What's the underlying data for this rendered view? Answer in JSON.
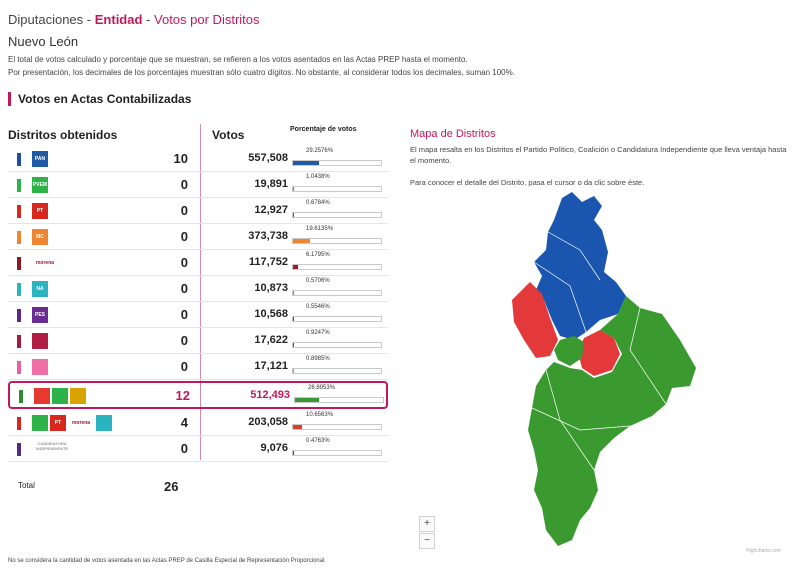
{
  "breadcrumb": {
    "part1": "Diputaciones",
    "sep1": "-",
    "part2": "Entidad",
    "sep2": "-",
    "part3": "Votos por Distritos"
  },
  "state": "Nuevo León",
  "notes": [
    "El total de votos calculado y porcentaje que se muestran, se refieren a los votos asentados en las Actas PREP hasta el momento.",
    "Por presentación, los decimales de los porcentajes muestran sólo cuatro dígitos. No obstante, al considerar todos los decimales, suman 100%."
  ],
  "section_title": "Votos en Actas Contabilizadas",
  "headers": {
    "districts": "Distritos obtenidos",
    "votes": "Votos",
    "pct": "Porcentaje de votos"
  },
  "rows": [
    {
      "swatch": "#1f4fa0",
      "logos": [
        {
          "label": "PAN",
          "color": "#1f5aa6"
        }
      ],
      "count": "10",
      "votes": "557,508",
      "pct_label": "29.2576%",
      "pct": 29.2576,
      "bar_color": "#1f5aa6"
    },
    {
      "swatch": "#2db34a",
      "logos": [
        {
          "label": "PVEM",
          "color": "#2db34a"
        }
      ],
      "count": "0",
      "votes": "19,891",
      "pct_label": "1.0438%",
      "pct": 1.0438,
      "bar_color": "#2db34a"
    },
    {
      "swatch": "#d7281e",
      "logos": [
        {
          "label": "PT",
          "color": "#d7281e"
        }
      ],
      "count": "0",
      "votes": "12,927",
      "pct_label": "0.6784%",
      "pct": 0.6784,
      "bar_color": "#d7281e"
    },
    {
      "swatch": "#ee8533",
      "logos": [
        {
          "label": "MC",
          "color": "#ee8533"
        }
      ],
      "count": "0",
      "votes": "373,738",
      "pct_label": "19.6135%",
      "pct": 19.6135,
      "bar_color": "#ee8533"
    },
    {
      "swatch": "#8b1a22",
      "logos": [
        {
          "label": "morena",
          "color": "transparent",
          "kind": "morena"
        }
      ],
      "count": "0",
      "votes": "117,752",
      "pct_label": "6.1795%",
      "pct": 6.1795,
      "bar_color": "#9b1c2c"
    },
    {
      "swatch": "#2bb3c0",
      "logos": [
        {
          "label": "NA",
          "color": "#2bb3c0"
        }
      ],
      "count": "0",
      "votes": "10,873",
      "pct_label": "0.5706%",
      "pct": 0.5706,
      "bar_color": "#2bb3c0"
    },
    {
      "swatch": "#5b2a86",
      "logos": [
        {
          "label": "PES",
          "color": "#6b2c91"
        }
      ],
      "count": "0",
      "votes": "10,568",
      "pct_label": "0.5546%",
      "pct": 0.5546,
      "bar_color": "#6b2c91"
    },
    {
      "swatch": "#a01c3c",
      "logos": [
        {
          "label": "",
          "color": "#b01f43"
        }
      ],
      "count": "0",
      "votes": "17,622",
      "pct_label": "0.9247%",
      "pct": 0.9247,
      "bar_color": "#b01f43"
    },
    {
      "swatch": "#e9609b",
      "logos": [
        {
          "label": "",
          "color": "#ee6ea5"
        }
      ],
      "count": "0",
      "votes": "17,121",
      "pct_label": "0.8985%",
      "pct": 0.8985,
      "bar_color": "#ee6ea5"
    },
    {
      "swatch": "#2f8a34",
      "logos": [
        {
          "label": "",
          "color": "#e6392f"
        },
        {
          "label": "",
          "color": "#2db34a"
        },
        {
          "label": "",
          "color": "#d9a400"
        }
      ],
      "count": "12",
      "votes": "512,493",
      "pct_label": "26.8953%",
      "pct": 26.8953,
      "bar_color": "#3a9a3a",
      "highlight": true
    },
    {
      "swatch": "#d7281e",
      "logos": [
        {
          "label": "",
          "color": "#2db34a"
        },
        {
          "label": "PT",
          "color": "#d7281e"
        },
        {
          "label": "morena",
          "color": "transparent",
          "kind": "morena"
        },
        {
          "label": "",
          "color": "#2bb3c0"
        }
      ],
      "count": "4",
      "votes": "203,058",
      "pct_label": "10.6563%",
      "pct": 10.6563,
      "bar_color": "#e33a2e"
    },
    {
      "swatch": "#5b2a86",
      "logos": [
        {
          "label": "CANDIDATURA INDEPENDIENTE",
          "color": "transparent",
          "kind": "text"
        }
      ],
      "count": "0",
      "votes": "9,076",
      "pct_label": "0.4763%",
      "pct": 0.4763,
      "bar_color": "#6b2c91"
    }
  ],
  "total": {
    "label": "Total",
    "value": "26"
  },
  "map": {
    "title": "Mapa de Distritos",
    "description": "El mapa resalta en los Distritos el Partido Político, Coalición o Candidatura Independiente que lleva ventaja hasta el momento.",
    "hint": "Para conocer el detalle del Distrito, pasa el cursor o da clic sobre éste.",
    "colors": {
      "pan": "#1a56b0",
      "coalition_green": "#3a9a2f",
      "coalition_red": "#e3393a"
    },
    "zoom_in": "+",
    "zoom_out": "−",
    "credit": "Highcharts.com"
  },
  "footnote": "No se considera la cantidad de votos asentada en las Actas PREP de Casilla Especial de Representación Proporcional."
}
